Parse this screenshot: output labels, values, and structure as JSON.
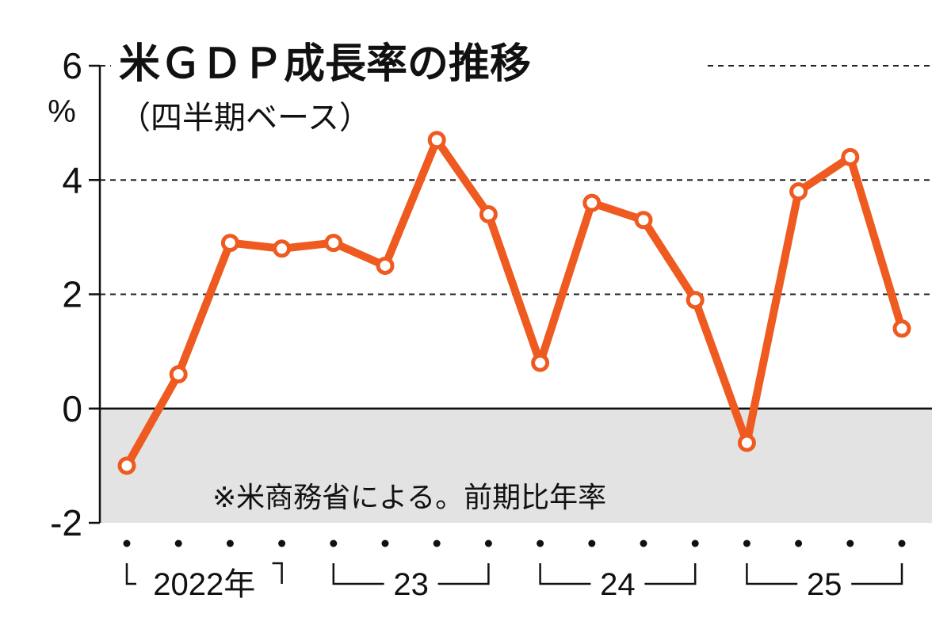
{
  "chart_data": {
    "type": "line",
    "title": "米ＧＤＰ成長率の推移",
    "subtitle": "（四半期ベース）",
    "ylabel": "%",
    "note": "※米商務省による。前期比年率",
    "ylim": [
      -2,
      6
    ],
    "y_ticks": [
      {
        "value": 6,
        "label": "6"
      },
      {
        "value": 4,
        "label": "4"
      },
      {
        "value": 2,
        "label": "2"
      },
      {
        "value": 0,
        "label": "0"
      },
      {
        "value": -2,
        "label": "-2"
      }
    ],
    "gridlines": [
      6,
      4,
      2
    ],
    "negative_region_shaded": true,
    "negative_region_color": "#e3e3e3",
    "year_groups": [
      {
        "label": "2022年",
        "start": 0,
        "end": 3,
        "style": "corner"
      },
      {
        "label": "23",
        "start": 4,
        "end": 7,
        "style": "dash"
      },
      {
        "label": "24",
        "start": 8,
        "end": 11,
        "style": "dash"
      },
      {
        "label": "25",
        "start": 12,
        "end": 15,
        "style": "dash"
      }
    ],
    "series": [
      {
        "color": "#ee5a1f",
        "values": [
          -1.0,
          0.6,
          2.9,
          2.8,
          2.9,
          2.5,
          4.7,
          3.4,
          0.8,
          3.6,
          3.3,
          1.9,
          -0.6,
          3.8,
          4.4,
          1.4
        ]
      }
    ]
  }
}
